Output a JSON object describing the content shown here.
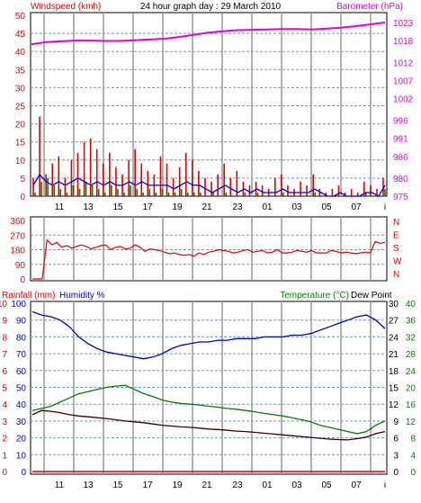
{
  "header": {
    "left_title": "Windspeed (kmh)",
    "center_title": "24 hour graph day : 29 March 2010",
    "right_title": "Barometer (hPa)"
  },
  "colors": {
    "wind": "#e00000",
    "gust_bar": "#e00000",
    "avg_bar": "#008000",
    "wind_line": "#0000cc",
    "barometer": "#e000e0",
    "direction": "#e00000",
    "humidity": "#0000cc",
    "temperature": "#008000",
    "dew": "#3a0000",
    "rain": "#e00000",
    "grid": "#6699cc"
  },
  "x_ticks": [
    "11",
    "13",
    "15",
    "17",
    "19",
    "21",
    "23",
    "01",
    "03",
    "05",
    "07",
    "i"
  ],
  "chart_data": [
    {
      "type": "bar",
      "name": "Windspeed",
      "left_axis": {
        "title": "Windspeed (kmh)",
        "ticks": [
          "0",
          "5",
          "10",
          "15",
          "20",
          "25",
          "30",
          "35",
          "40",
          "45",
          "50"
        ],
        "ylim": [
          0,
          50
        ]
      },
      "right_axis": {
        "title": "Barometer (hPa)",
        "ticks": [
          "975",
          "980",
          "986",
          "991",
          "996",
          "1002",
          "1007",
          "1012",
          "1018",
          "1023"
        ],
        "ylim": [
          975,
          1025
        ]
      },
      "series": [
        {
          "name": "Gust",
          "kind": "bars",
          "values": [
            5,
            22,
            6,
            9,
            11,
            5,
            10,
            12,
            15,
            16,
            13,
            9,
            12,
            8,
            6,
            10,
            13,
            9,
            7,
            6,
            11,
            9,
            5,
            8,
            12,
            10,
            7,
            5,
            4,
            6,
            9,
            5,
            7,
            4,
            3,
            4,
            3,
            2,
            5,
            6,
            3,
            2,
            4,
            3,
            6,
            2,
            1,
            2,
            3,
            1,
            2,
            1,
            4,
            3,
            2,
            5
          ]
        },
        {
          "name": "Average",
          "kind": "bars",
          "values": [
            1,
            4,
            5,
            3,
            2,
            1,
            3,
            2,
            4,
            3,
            2,
            1,
            3,
            2,
            1,
            3,
            2,
            1,
            2,
            1,
            2,
            1,
            1,
            2,
            1,
            1,
            1,
            0,
            1,
            0,
            1,
            0,
            0,
            1,
            0,
            1,
            0,
            0,
            0,
            1,
            0,
            0,
            0,
            0,
            1,
            0,
            0,
            0,
            0,
            0,
            0,
            0,
            1,
            0,
            0,
            2
          ]
        },
        {
          "name": "Wind",
          "kind": "line",
          "values": [
            3,
            6,
            4,
            3,
            4,
            3,
            4,
            5,
            4,
            3,
            4,
            3,
            4,
            3,
            3,
            4,
            3,
            4,
            3,
            3,
            3,
            3,
            2,
            3,
            4,
            3,
            3,
            2,
            1,
            2,
            3,
            2,
            1,
            2,
            1,
            2,
            1,
            1,
            1,
            2,
            1,
            1,
            1,
            1,
            2,
            1,
            0,
            0,
            1,
            0,
            0,
            0,
            1,
            1,
            0,
            3
          ]
        },
        {
          "name": "Barometer",
          "kind": "line",
          "axis": "right",
          "values": [
            1017.0,
            1017.6,
            1017.8,
            1018.0,
            1018.0,
            1017.9,
            1017.9,
            1018.1,
            1018.3,
            1018.5,
            1019.0,
            1019.6,
            1020.2,
            1020.6,
            1020.9,
            1021.0,
            1021.1,
            1021.2,
            1021.2,
            1021.1,
            1021.3,
            1021.6,
            1022.0,
            1022.5,
            1023.0
          ]
        }
      ]
    },
    {
      "type": "line",
      "name": "Wind direction",
      "left_axis": {
        "ticks": [
          "0",
          "90",
          "180",
          "270",
          "360"
        ],
        "ylim": [
          0,
          360
        ]
      },
      "right_axis": {
        "ticks": [
          "N",
          "W",
          "S",
          "E",
          "N"
        ]
      },
      "values": [
        0,
        0,
        0,
        240,
        210,
        225,
        195,
        205,
        190,
        200,
        210,
        200,
        185,
        195,
        205,
        210,
        180,
        195,
        200,
        185,
        190,
        210,
        195,
        170,
        185,
        180,
        175,
        165,
        155,
        160,
        150,
        145,
        150,
        140,
        160,
        150,
        165,
        170,
        180,
        175,
        170,
        160,
        165,
        175,
        180,
        165,
        170,
        175,
        160,
        165,
        180,
        160,
        160,
        165,
        175,
        170,
        165,
        175,
        160,
        160,
        160,
        175,
        170,
        160,
        165,
        160,
        155,
        160,
        165,
        160,
        230,
        220,
        225
      ]
    },
    {
      "type": "line",
      "name": "Temperature / Humidity",
      "left_axis": {
        "title": "Rainfall (mm)",
        "ticks": [
          "0",
          "1",
          "2",
          "3",
          "4",
          "5",
          "6",
          "7",
          "8",
          "9",
          "10"
        ],
        "ylim": [
          0,
          10
        ]
      },
      "left_axis2": {
        "title": "Humidity %",
        "ticks": [
          "0",
          "10",
          "20",
          "30",
          "40",
          "50",
          "60",
          "70",
          "80",
          "90",
          "100"
        ],
        "ylim": [
          0,
          100
        ]
      },
      "right_axis": {
        "title": "Temperature (°C)",
        "ticks": [
          "0",
          "4",
          "8",
          "12",
          "16",
          "20",
          "24",
          "28",
          "32",
          "36",
          "40"
        ],
        "ylim": [
          0,
          40
        ]
      },
      "right_axis2": {
        "title": "Dew Point",
        "ticks": [
          "0",
          "3",
          "6",
          "9",
          "12",
          "15",
          "18",
          "21",
          "24",
          "27",
          "30"
        ]
      },
      "series": [
        {
          "name": "Humidity",
          "axis": "left2",
          "values": [
            95,
            93,
            92,
            90,
            86,
            80,
            76,
            73,
            71,
            70,
            69,
            68,
            67,
            68,
            70,
            73,
            75,
            76,
            77,
            77,
            78,
            78,
            79,
            79,
            79,
            80,
            80,
            80,
            81,
            81,
            82,
            84,
            86,
            88,
            90,
            92,
            93,
            90,
            85
          ]
        },
        {
          "name": "Temperature",
          "axis": "right",
          "values": [
            14.5,
            15.0,
            15.5,
            16.5,
            17.5,
            18.5,
            19.0,
            19.5,
            20.0,
            20.3,
            20.5,
            19.5,
            18.5,
            17.8,
            17.0,
            16.5,
            16.2,
            16.0,
            15.8,
            15.5,
            15.3,
            15.0,
            14.8,
            14.5,
            14.2,
            13.8,
            13.5,
            13.2,
            12.8,
            12.3,
            11.8,
            11.0,
            10.5,
            10.0,
            9.5,
            9.0,
            9.5,
            11.0,
            12.0
          ]
        },
        {
          "name": "Dew Point",
          "axis": "right",
          "values": [
            13.5,
            14.5,
            14.3,
            14.0,
            13.5,
            13.2,
            13.0,
            12.8,
            12.6,
            12.3,
            12.0,
            11.8,
            11.6,
            11.3,
            11.0,
            10.8,
            10.6,
            10.5,
            10.3,
            10.1,
            10.0,
            9.8,
            9.6,
            9.5,
            9.3,
            9.1,
            8.9,
            8.7,
            8.5,
            8.3,
            8.1,
            7.9,
            7.7,
            7.6,
            7.5,
            7.8,
            8.2,
            9.0,
            9.5
          ]
        },
        {
          "name": "Rainfall",
          "axis": "left",
          "values": [
            0,
            0,
            0,
            0,
            0,
            0,
            0,
            0,
            0,
            0,
            0,
            0,
            0,
            0,
            0,
            0,
            0,
            0,
            0,
            0,
            0,
            0,
            0,
            0,
            0,
            0,
            0,
            0,
            0,
            0,
            0,
            0,
            0,
            0,
            0,
            0,
            0,
            0,
            0
          ]
        }
      ]
    }
  ]
}
